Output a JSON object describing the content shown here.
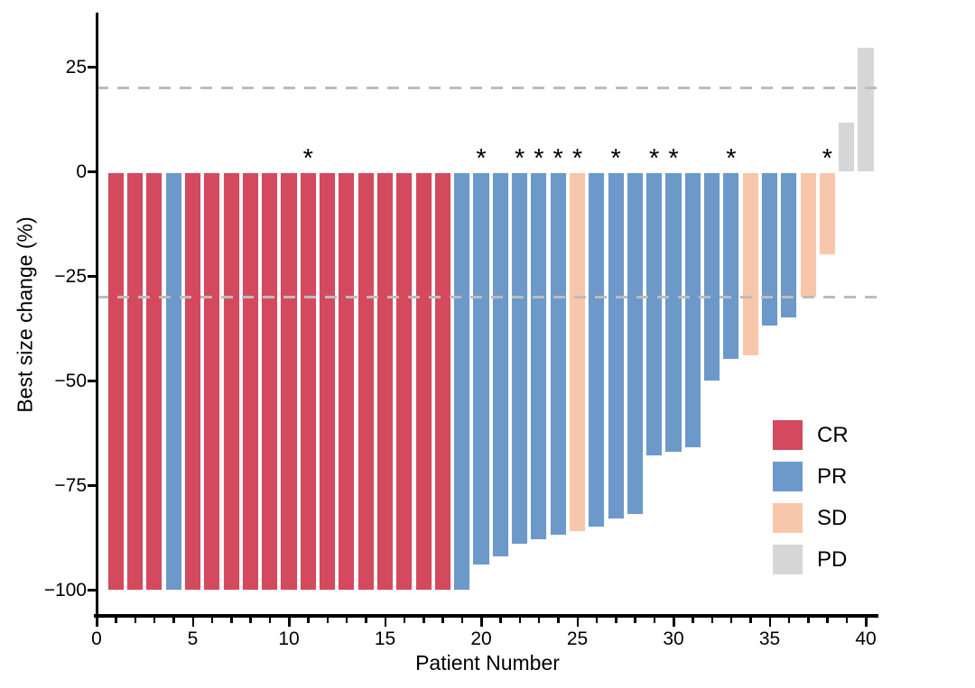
{
  "chart_data": {
    "type": "bar",
    "title": "",
    "xlabel": "Patient Number",
    "ylabel": "Best size change (%)",
    "xlim": [
      0,
      40.7
    ],
    "ylim": [
      -107,
      36
    ],
    "grid": false,
    "legend_position": "right-inside",
    "x_tick_labels": [
      0,
      5,
      10,
      15,
      20,
      25,
      30,
      35,
      40
    ],
    "x_minor_tick_every": 1,
    "y_ticks": [
      {
        "value": 25,
        "label": "25"
      },
      {
        "value": 0,
        "label": "0"
      },
      {
        "value": -25,
        "label": "−25"
      },
      {
        "value": -50,
        "label": "−50"
      },
      {
        "value": -75,
        "label": "−75"
      },
      {
        "value": -100,
        "label": "−100"
      }
    ],
    "thresholds": [
      {
        "value": 20,
        "style": "dashed"
      },
      {
        "value": -30,
        "style": "dashed"
      }
    ],
    "legend": [
      {
        "label": "CR",
        "color": "#D4495E"
      },
      {
        "label": "PR",
        "color": "#6C99C9"
      },
      {
        "label": "SD",
        "color": "#F8C6AB"
      },
      {
        "label": "PD",
        "color": "#D6D6D6"
      }
    ],
    "annotation_symbol": "*",
    "bars": [
      {
        "patient": 1,
        "value": -100,
        "response": "CR",
        "asterisk": false
      },
      {
        "patient": 2,
        "value": -100,
        "response": "CR",
        "asterisk": false
      },
      {
        "patient": 3,
        "value": -100,
        "response": "CR",
        "asterisk": false
      },
      {
        "patient": 4,
        "value": -100,
        "response": "PR",
        "asterisk": false
      },
      {
        "patient": 5,
        "value": -100,
        "response": "CR",
        "asterisk": false
      },
      {
        "patient": 6,
        "value": -100,
        "response": "CR",
        "asterisk": false
      },
      {
        "patient": 7,
        "value": -100,
        "response": "CR",
        "asterisk": false
      },
      {
        "patient": 8,
        "value": -100,
        "response": "CR",
        "asterisk": false
      },
      {
        "patient": 9,
        "value": -100,
        "response": "CR",
        "asterisk": false
      },
      {
        "patient": 10,
        "value": -100,
        "response": "CR",
        "asterisk": false
      },
      {
        "patient": 11,
        "value": -100,
        "response": "CR",
        "asterisk": true
      },
      {
        "patient": 12,
        "value": -100,
        "response": "CR",
        "asterisk": false
      },
      {
        "patient": 13,
        "value": -100,
        "response": "CR",
        "asterisk": false
      },
      {
        "patient": 14,
        "value": -100,
        "response": "CR",
        "asterisk": false
      },
      {
        "patient": 15,
        "value": -100,
        "response": "CR",
        "asterisk": false
      },
      {
        "patient": 16,
        "value": -100,
        "response": "CR",
        "asterisk": false
      },
      {
        "patient": 17,
        "value": -100,
        "response": "CR",
        "asterisk": false
      },
      {
        "patient": 18,
        "value": -100,
        "response": "CR",
        "asterisk": false
      },
      {
        "patient": 19,
        "value": -100,
        "response": "PR",
        "asterisk": false
      },
      {
        "patient": 20,
        "value": -94,
        "response": "PR",
        "asterisk": true
      },
      {
        "patient": 21,
        "value": -92,
        "response": "PR",
        "asterisk": false
      },
      {
        "patient": 22,
        "value": -89,
        "response": "PR",
        "asterisk": true
      },
      {
        "patient": 23,
        "value": -88,
        "response": "PR",
        "asterisk": true
      },
      {
        "patient": 24,
        "value": -87,
        "response": "PR",
        "asterisk": true
      },
      {
        "patient": 25,
        "value": -86,
        "response": "SD",
        "asterisk": true
      },
      {
        "patient": 26,
        "value": -85,
        "response": "PR",
        "asterisk": false
      },
      {
        "patient": 27,
        "value": -83,
        "response": "PR",
        "asterisk": true
      },
      {
        "patient": 28,
        "value": -82,
        "response": "PR",
        "asterisk": false
      },
      {
        "patient": 29,
        "value": -68,
        "response": "PR",
        "asterisk": true
      },
      {
        "patient": 30,
        "value": -67,
        "response": "PR",
        "asterisk": true
      },
      {
        "patient": 31,
        "value": -66,
        "response": "PR",
        "asterisk": false
      },
      {
        "patient": 32,
        "value": -50,
        "response": "PR",
        "asterisk": false
      },
      {
        "patient": 33,
        "value": -45,
        "response": "PR",
        "asterisk": true
      },
      {
        "patient": 34,
        "value": -44,
        "response": "SD",
        "asterisk": false
      },
      {
        "patient": 35,
        "value": -37,
        "response": "PR",
        "asterisk": false
      },
      {
        "patient": 36,
        "value": -35,
        "response": "PR",
        "asterisk": false
      },
      {
        "patient": 37,
        "value": -30,
        "response": "SD",
        "asterisk": false
      },
      {
        "patient": 38,
        "value": -20,
        "response": "SD",
        "asterisk": true
      },
      {
        "patient": 39,
        "value": 12,
        "response": "PD",
        "asterisk": false
      },
      {
        "patient": 40,
        "value": 30,
        "response": "PD",
        "asterisk": false
      }
    ]
  },
  "colors": {
    "CR": "#D4495E",
    "PR": "#6C99C9",
    "SD": "#F8C6AB",
    "PD": "#D6D6D6",
    "threshold_dash": "#BCBCBC",
    "axis": "#000000",
    "background": "#FFFFFF"
  }
}
